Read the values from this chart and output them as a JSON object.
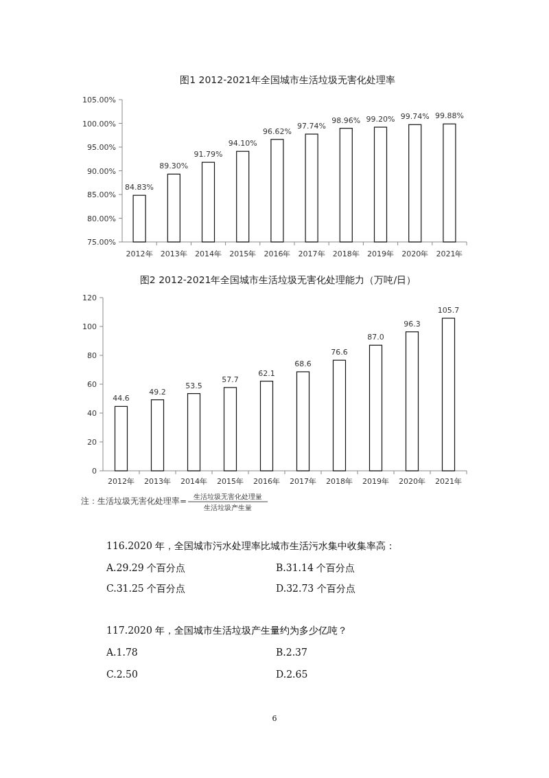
{
  "chart_data": [
    {
      "type": "bar",
      "title": "图1  2012-2021年全国城市生活垃圾无害化处理率",
      "categories": [
        "2012年",
        "2013年",
        "2014年",
        "2015年",
        "2016年",
        "2017年",
        "2018年",
        "2019年",
        "2020年",
        "2021年"
      ],
      "series": [
        {
          "color": "#ffffff",
          "values": [
            84.83,
            89.3,
            91.79,
            94.1,
            96.62,
            97.74,
            98.96,
            99.2,
            99.74,
            99.88
          ]
        }
      ],
      "value_labels": [
        "84.83%",
        "89.30%",
        "91.79%",
        "94.10%",
        "96.62%",
        "97.74%",
        "98.96%",
        "99.20%",
        "99.74%",
        "99.88%"
      ],
      "ylim": [
        75,
        105
      ],
      "yticks": [
        {
          "value": 75,
          "label": "75.00%"
        },
        {
          "value": 80,
          "label": "80.00%"
        },
        {
          "value": 85,
          "label": "85.00%"
        },
        {
          "value": 90,
          "label": "90.00%"
        },
        {
          "value": 95,
          "label": "95.00%"
        },
        {
          "value": 100,
          "label": "100.00%"
        },
        {
          "value": 105,
          "label": "105.00%"
        }
      ],
      "grid": false
    },
    {
      "type": "bar",
      "title": "图2 2012-2021年全国城市生活垃圾无害化处理能力（万吨/日）",
      "categories": [
        "2012年",
        "2013年",
        "2014年",
        "2015年",
        "2016年",
        "2017年",
        "2018年",
        "2019年",
        "2020年",
        "2021年"
      ],
      "series": [
        {
          "color": "#ffffff",
          "values": [
            44.6,
            49.2,
            53.5,
            57.7,
            62.1,
            68.6,
            76.6,
            87.0,
            96.3,
            105.7
          ]
        }
      ],
      "value_labels": [
        "44.6",
        "49.2",
        "53.5",
        "57.7",
        "62.1",
        "68.6",
        "76.6",
        "87.0",
        "96.3",
        "105.7"
      ],
      "ylim": [
        0,
        120
      ],
      "yticks": [
        0,
        20,
        40,
        60,
        80,
        100,
        120
      ],
      "grid": false,
      "annotations": [
        "注：生活垃圾无害化处理率=",
        "生活垃圾无害化处理量",
        "生活垃圾产生量"
      ]
    },
    {
      "type": "other",
      "annotations": [
        "116.2020 年，全国城市污水处理率比城市生活污水集中收集率高：",
        "A.29.29 个百分点",
        "B.31.14 个百分点",
        "C.31.25 个百分点",
        "D.32.73 个百分点",
        "117.2020 年，全国城市生活垃圾产生量约为多少亿吨？",
        "A.1.78",
        "B.2.37",
        "C.2.50",
        "D.2.65",
        "6"
      ]
    }
  ]
}
